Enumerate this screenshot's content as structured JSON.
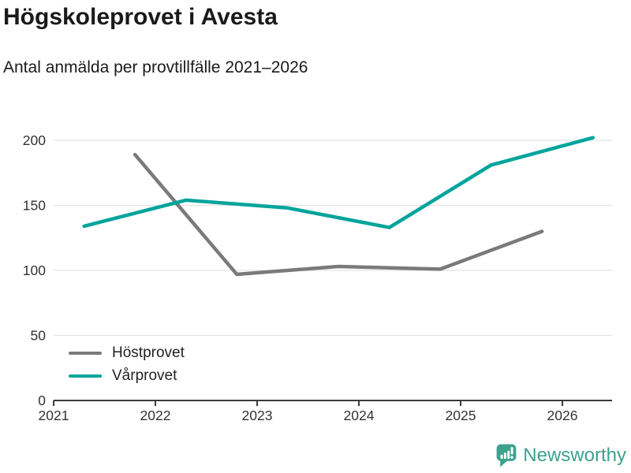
{
  "chart_data": {
    "type": "line",
    "title": "Högskoleprovet i Avesta",
    "subtitle": "Antal anmälda per provtillfälle 2021–2026",
    "series": [
      {
        "name": "Höstprovet",
        "color": "#7a7a7a",
        "x": [
          2021.8,
          2022.8,
          2023.8,
          2024.8,
          2025.8
        ],
        "values": [
          189,
          97,
          103,
          101,
          130
        ]
      },
      {
        "name": "Vårprovet",
        "color": "#00a49c",
        "x": [
          2021.3,
          2022.3,
          2023.3,
          2024.3,
          2025.3,
          2026.3
        ],
        "values": [
          134,
          154,
          148,
          133,
          181,
          202
        ]
      }
    ],
    "xticks": [
      "2021",
      "2022",
      "2023",
      "2024",
      "2025",
      "2026"
    ],
    "xtick_years": [
      2021,
      2022,
      2023,
      2024,
      2025,
      2026
    ],
    "yticks": [
      0,
      50,
      100,
      150,
      200
    ],
    "ylim": [
      0,
      200
    ],
    "xlim": [
      2021,
      2026.5
    ],
    "grid": true,
    "legend_position": "inside-bottom-left",
    "colors": {
      "grid": "#e3e3e3",
      "axis": "#3c3c3c",
      "tick_text": "#333333"
    }
  },
  "footer": {
    "brand": "Newsworthy",
    "brand_color": "#3da18f"
  }
}
